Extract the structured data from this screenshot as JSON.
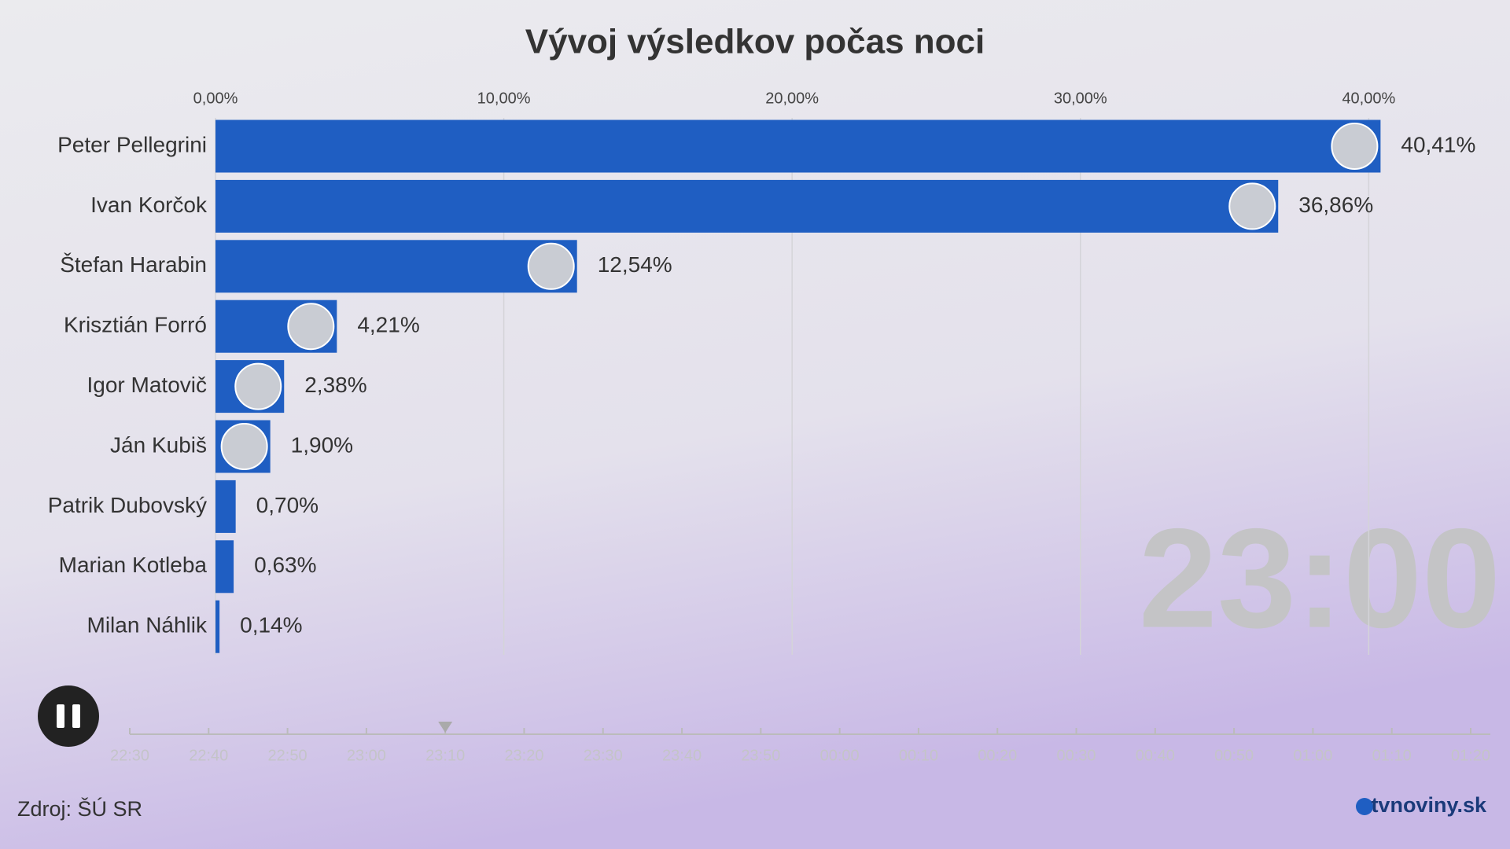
{
  "chart_data": {
    "type": "hbar",
    "title": "Vývoj výsledkov počas noci",
    "categories": [
      "Peter Pellegrini",
      "Ivan Korčok",
      "Štefan Harabin",
      "Krisztián Forró",
      "Igor Matovič",
      "Ján Kubiš",
      "Patrik Dubovský",
      "Marian Kotleba",
      "Milan Náhlik"
    ],
    "values": [
      40.41,
      36.86,
      12.54,
      4.21,
      2.38,
      1.9,
      0.7,
      0.63,
      0.14
    ],
    "value_labels": [
      "40,41%",
      "36,86%",
      "12,54%",
      "4,21%",
      "2,38%",
      "1,90%",
      "0,70%",
      "0,63%",
      "0,14%"
    ],
    "color": "#1f5ec2",
    "xlim": [
      0,
      44
    ],
    "xticks": [
      {
        "value": 0,
        "label": "0,00%"
      },
      {
        "value": 10,
        "label": "10,00%"
      },
      {
        "value": 20,
        "label": "20,00%"
      },
      {
        "value": 30,
        "label": "30,00%"
      },
      {
        "value": 40,
        "label": "40,00%"
      }
    ],
    "grid": true
  },
  "timeline": {
    "current": "23:00",
    "labels": [
      "22:30",
      "22:40",
      "22:50",
      "23:00",
      "23:10",
      "23:20",
      "23:30",
      "23:40",
      "23:50",
      "00:00",
      "00:10",
      "00:20",
      "00:30",
      "00:40",
      "00:50",
      "01:00",
      "01:10",
      "01:20"
    ]
  },
  "footer": {
    "source": "Zdroj: ŠÚ SR",
    "logo": "tvnoviny.sk"
  }
}
